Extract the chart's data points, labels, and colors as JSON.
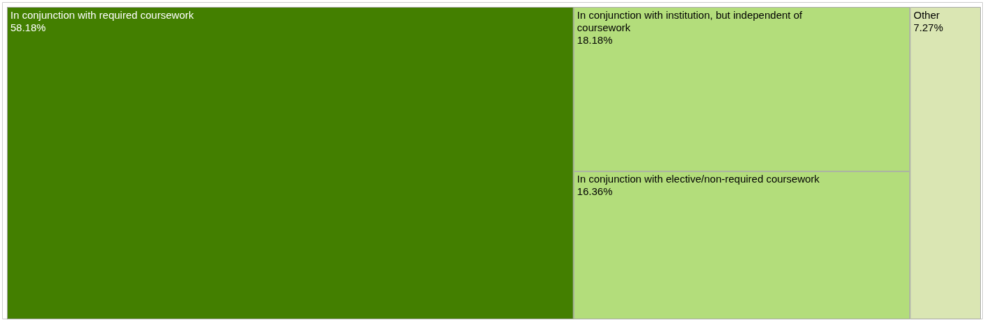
{
  "chart_data": {
    "type": "other",
    "categories": [
      "In conjunction with required coursework",
      "In conjunction with institution, but independent of coursework",
      "In conjunction with elective/non-required coursework",
      "Other"
    ],
    "values": [
      58.18,
      18.18,
      16.36,
      7.27
    ],
    "value_labels": [
      "58.18%",
      "18.18%",
      "16.36%",
      "7.27%"
    ],
    "colors": [
      "#437f00",
      "#b3dd7b",
      "#b3dd7b",
      "#dae6b3"
    ]
  }
}
